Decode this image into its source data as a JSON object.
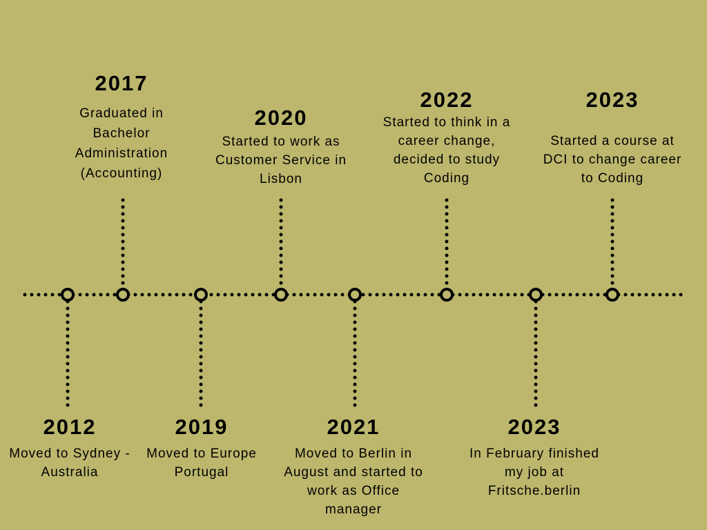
{
  "colors": {
    "background": "#bdb76e",
    "line": "#000000"
  },
  "events": [
    {
      "id": "2012",
      "year": "2012",
      "lines": [
        "Moved to Sydney -",
        "Australia"
      ],
      "side": "bottom"
    },
    {
      "id": "2017",
      "year": "2017",
      "lines": [
        "Graduated in",
        "Bachelor",
        "Administration",
        "(Accounting)"
      ],
      "side": "top"
    },
    {
      "id": "2019",
      "year": "2019",
      "lines": [
        "Moved to Europe",
        "Portugal"
      ],
      "side": "bottom"
    },
    {
      "id": "2020",
      "year": "2020",
      "lines": [
        "Started to work as",
        "Customer Service in",
        "Lisbon"
      ],
      "side": "top"
    },
    {
      "id": "2021",
      "year": "2021",
      "lines": [
        "Moved to Berlin in",
        "August and started to",
        "work as Office",
        "manager"
      ],
      "side": "bottom"
    },
    {
      "id": "2022",
      "year": "2022",
      "lines": [
        "Started to think in a",
        "career change,",
        "decided to study",
        "Coding"
      ],
      "side": "top"
    },
    {
      "id": "2023a",
      "year": "2023",
      "lines": [
        "In February finished",
        "my job at",
        "Fritsche.berlin"
      ],
      "side": "bottom"
    },
    {
      "id": "2023b",
      "year": "2023",
      "lines": [
        "Started a course at",
        "DCI to change career",
        "to Coding"
      ],
      "side": "top"
    }
  ]
}
